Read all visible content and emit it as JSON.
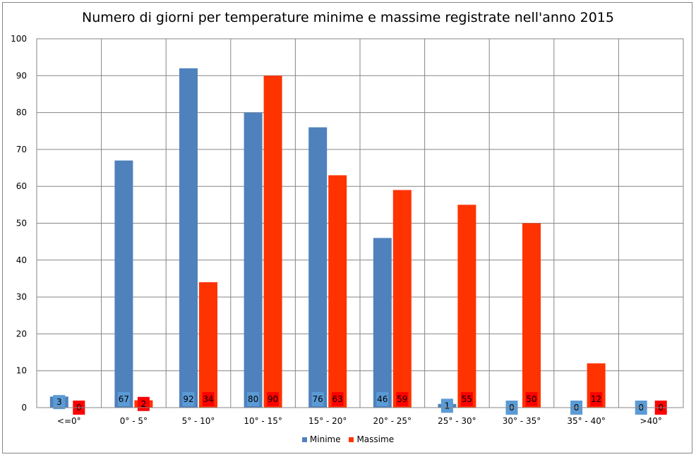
{
  "chart_data": {
    "type": "bar",
    "title": "Numero di giorni per temperature minime e massime registrate nell'anno 2015",
    "xlabel": "",
    "ylabel": "",
    "ylim": [
      0,
      100
    ],
    "yticks": [
      0,
      10,
      20,
      30,
      40,
      50,
      60,
      70,
      80,
      90,
      100
    ],
    "categories": [
      "<=0°",
      "0° - 5°",
      "5° - 10°",
      "10° - 15°",
      "15° - 20°",
      "20° - 25°",
      "25° - 30°",
      "30° - 35°",
      "35° - 40°",
      ">40°"
    ],
    "series": [
      {
        "name": "Minime",
        "color": "#4f81bd",
        "label_color": "#5b9bd5",
        "values": [
          3,
          67,
          92,
          80,
          76,
          46,
          1,
          0,
          0,
          0
        ]
      },
      {
        "name": "Massime",
        "color": "#ff3300",
        "label_color": "#ff0000",
        "values": [
          0,
          2,
          34,
          90,
          63,
          59,
          55,
          50,
          12,
          0
        ]
      }
    ],
    "grid": true,
    "legend_position": "bottom"
  }
}
